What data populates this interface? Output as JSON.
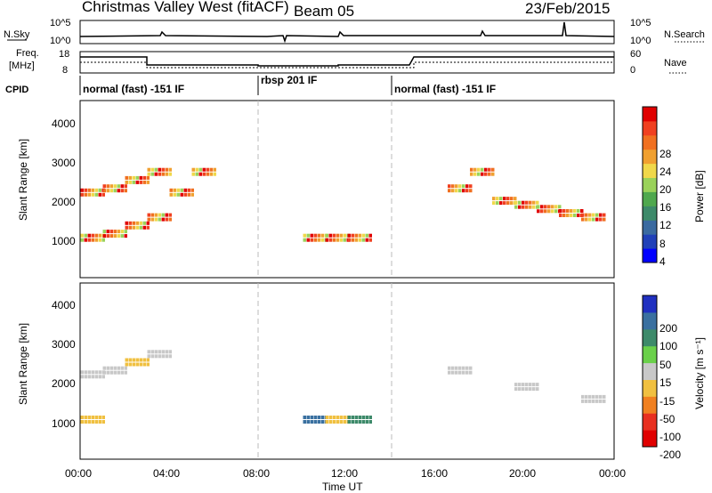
{
  "header": {
    "station": "Christmas Valley West (fitACF)",
    "beam": "Beam 05",
    "date": "23/Feb/2015"
  },
  "strip": {
    "nsky_label": "N.Sky",
    "nsearch_label": "N.Search",
    "noise_ticks_left": [
      "10^5",
      "10^0"
    ],
    "noise_ticks_right": [
      "10^5",
      "10^0"
    ],
    "freq_label_1": "Freq.",
    "freq_label_2": "[MHz]",
    "freq_ticks": [
      "18",
      "8"
    ],
    "nave_label": "Nave",
    "nave_ticks": [
      "60",
      "0"
    ],
    "cpid_label": "CPID",
    "cpid_segments": [
      {
        "label": "normal (fast) -151 IF",
        "start_h": 0,
        "end_h": 8
      },
      {
        "label": "rbsp 201 IF",
        "start_h": 8,
        "end_h": 14
      },
      {
        "label": "normal (fast) -151 IF",
        "start_h": 14,
        "end_h": 24
      }
    ]
  },
  "chart_data": [
    {
      "type": "heatmap",
      "title": "Power",
      "ylabel": "Slant Range [km]",
      "xlabel": "",
      "xlim_hours": [
        0,
        24
      ],
      "ylim": [
        200,
        4500
      ],
      "yticks": [
        "1000",
        "2000",
        "3000",
        "4000"
      ],
      "colorbar": {
        "label": "Power [dB]",
        "ticks": [
          "4",
          "8",
          "12",
          "16",
          "20",
          "24",
          "28"
        ],
        "colors": [
          "#0000ff",
          "#2040b8",
          "#3a6aa0",
          "#3d8a6a",
          "#4fa84e",
          "#9ad25a",
          "#f0d84a",
          "#f0a030",
          "#f07020",
          "#f04020",
          "#e00000"
        ]
      },
      "series": [
        {
          "name": "",
          "points": [
            [
              0.5,
              2300
            ],
            [
              1.5,
              2400
            ],
            [
              2.5,
              2600
            ],
            [
              3.5,
              2800
            ],
            [
              0.5,
              1200
            ],
            [
              1.5,
              1300
            ],
            [
              2.5,
              1500
            ],
            [
              3.5,
              1700
            ],
            [
              4.5,
              2300
            ],
            [
              5.5,
              2800
            ],
            [
              10.5,
              1200
            ],
            [
              11.5,
              1200
            ],
            [
              12.5,
              1200
            ],
            [
              17,
              2400
            ],
            [
              18,
              2800
            ],
            [
              19,
              2100
            ],
            [
              20,
              2000
            ],
            [
              21,
              1900
            ],
            [
              22,
              1800
            ],
            [
              23,
              1700
            ]
          ]
        }
      ]
    },
    {
      "type": "heatmap",
      "title": "Velocity",
      "ylabel": "Slant Range [km]",
      "xlabel": "Time UT",
      "xlim_hours": [
        0,
        24
      ],
      "ylim": [
        200,
        4500
      ],
      "xticks": [
        "00:00",
        "04:00",
        "08:00",
        "12:00",
        "16:00",
        "20:00",
        "00:00"
      ],
      "yticks": [
        "1000",
        "2000",
        "3000",
        "4000"
      ],
      "colorbar": {
        "label": "Velocity [m s⁻¹]",
        "ticks": [
          "200",
          "100",
          "50",
          "15",
          "-15",
          "-50",
          "-100",
          "-200"
        ],
        "colors": [
          "#2030c0",
          "#3a70a0",
          "#3d8a6a",
          "#6ad04a",
          "#c8c8c8",
          "#f0c040",
          "#f08020",
          "#e83020",
          "#e00000"
        ]
      },
      "series": [
        {
          "name": "",
          "points": [
            [
              0.5,
              2300,
              -10
            ],
            [
              1.5,
              2400,
              -15
            ],
            [
              2.5,
              2600,
              -20
            ],
            [
              3.5,
              2800,
              -15
            ],
            [
              0.5,
              1200,
              -20
            ],
            [
              10.5,
              1200,
              60
            ],
            [
              11.5,
              1200,
              -40
            ],
            [
              12.5,
              1200,
              40
            ],
            [
              17,
              2400,
              0
            ],
            [
              20,
              2000,
              0
            ],
            [
              23,
              1700,
              0
            ]
          ]
        }
      ]
    }
  ]
}
